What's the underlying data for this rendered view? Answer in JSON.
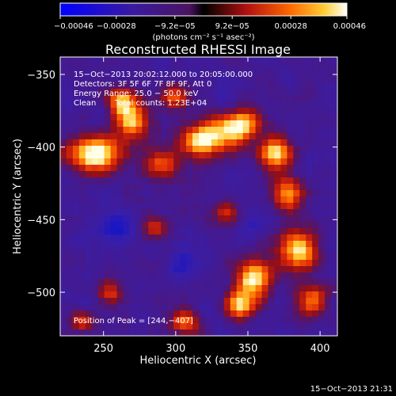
{
  "chart_data": {
    "type": "heatmap",
    "title": "Reconstructed RHESSI Image",
    "xlabel": "Heliocentric X (arcsec)",
    "ylabel": "Heliocentric Y (arcsec)",
    "xlim": [
      220,
      412
    ],
    "ylim": [
      -530,
      -338
    ],
    "x_ticks": [
      250,
      300,
      350,
      400
    ],
    "y_ticks": [
      -350,
      -400,
      -450,
      -500
    ],
    "x_tick_labels": [
      "250",
      "300",
      "350",
      "400"
    ],
    "y_tick_labels": [
      "−350",
      "−400",
      "−450",
      "−500"
    ],
    "colorbar": {
      "range": [
        -0.00046,
        0.00046
      ],
      "tick_values": [
        -0.00046,
        -0.00028,
        -9.2e-05,
        9.2e-05,
        0.00028,
        0.00046
      ],
      "tick_labels": [
        "−0.00046",
        "−0.00028",
        "−9.2e−05",
        "9.2e−05",
        "0.00028",
        "0.00046"
      ],
      "unit_label": "(photons cm⁻² s⁻¹ asec⁻²)"
    },
    "annotations": {
      "time_range": "15−Oct−2013 20:02:12.000 to 20:05:00.000",
      "detectors": "Detectors: 3F 5F 6F 7F 8F 9F, Att 0",
      "energy_range": "Energy Range: 25.0 − 50.0 keV",
      "method": "Clean",
      "total_counts": "Total counts: 1.23E+04",
      "peak_position": "Position of Peak = [244,−407]"
    },
    "peak": {
      "x": 244,
      "y": -407
    },
    "bright_regions": [
      {
        "x": 245,
        "y": -405,
        "sx": 14,
        "sy": 9,
        "amp": 1.0
      },
      {
        "x": 270,
        "y": -382,
        "sx": 9,
        "sy": 8,
        "amp": 0.85
      },
      {
        "x": 262,
        "y": -368,
        "sx": 7,
        "sy": 6,
        "amp": 0.75
      },
      {
        "x": 290,
        "y": -412,
        "sx": 8,
        "sy": 7,
        "amp": 0.65
      },
      {
        "x": 320,
        "y": -395,
        "sx": 12,
        "sy": 9,
        "amp": 0.95
      },
      {
        "x": 345,
        "y": -385,
        "sx": 10,
        "sy": 8,
        "amp": 0.9
      },
      {
        "x": 370,
        "y": -405,
        "sx": 8,
        "sy": 8,
        "amp": 0.85
      },
      {
        "x": 378,
        "y": -432,
        "sx": 7,
        "sy": 9,
        "amp": 0.75
      },
      {
        "x": 385,
        "y": -470,
        "sx": 9,
        "sy": 10,
        "amp": 0.9
      },
      {
        "x": 355,
        "y": -490,
        "sx": 10,
        "sy": 9,
        "amp": 0.85
      },
      {
        "x": 345,
        "y": -508,
        "sx": 8,
        "sy": 7,
        "amp": 0.8
      },
      {
        "x": 395,
        "y": -505,
        "sx": 7,
        "sy": 8,
        "amp": 0.7
      },
      {
        "x": 300,
        "y": -365,
        "sx": 7,
        "sy": 6,
        "amp": 0.6
      },
      {
        "x": 305,
        "y": -520,
        "sx": 7,
        "sy": 6,
        "amp": 0.65
      },
      {
        "x": 235,
        "y": -520,
        "sx": 6,
        "sy": 5,
        "amp": 0.55
      },
      {
        "x": 285,
        "y": -455,
        "sx": 6,
        "sy": 6,
        "amp": 0.5
      },
      {
        "x": 255,
        "y": -500,
        "sx": 6,
        "sy": 6,
        "amp": 0.5
      },
      {
        "x": 335,
        "y": -445,
        "sx": 6,
        "sy": 6,
        "amp": 0.45
      }
    ],
    "dark_regions": [
      {
        "x": 260,
        "y": -455,
        "sx": 9,
        "sy": 8,
        "amp": 0.9
      },
      {
        "x": 305,
        "y": -475,
        "sx": 8,
        "sy": 8,
        "amp": 0.6
      },
      {
        "x": 355,
        "y": -455,
        "sx": 7,
        "sy": 7,
        "amp": 0.5
      },
      {
        "x": 330,
        "y": -365,
        "sx": 6,
        "sy": 6,
        "amp": 0.45
      }
    ]
  },
  "footer": {
    "timestamp": "15−Oct−2013 21:31"
  }
}
